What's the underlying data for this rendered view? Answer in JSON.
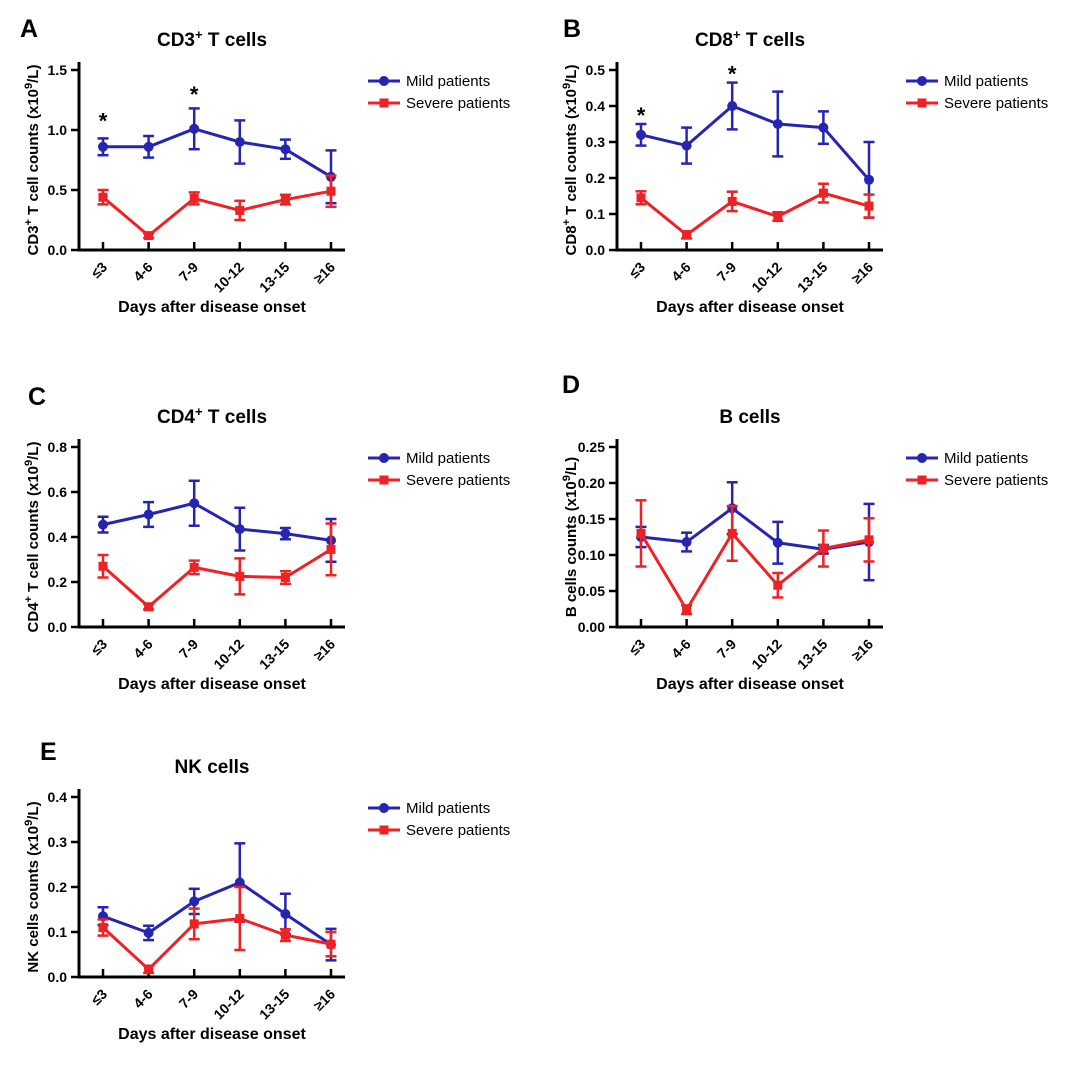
{
  "figure": {
    "description": "Lymphocyte subset counts over days after disease onset, mild vs severe patients",
    "background": "#ffffff"
  },
  "colors": {
    "mild_blue": "#2525B2",
    "severe_red": "#EE2124",
    "axis": "#000000"
  },
  "legend": {
    "items": [
      {
        "label": "Mild patients",
        "series_key": "mild_blue",
        "marker": "circle"
      },
      {
        "label": "Severe patients",
        "series_key": "severe_red",
        "marker": "square"
      }
    ]
  },
  "x_axis": {
    "label": "Days after disease onset",
    "categories": [
      "≤3",
      "4-6",
      "7-9",
      "10-12",
      "13-15",
      "≥16"
    ]
  },
  "chart_data": [
    {
      "panel": "A",
      "type": "line",
      "title": "CD3+ T cells",
      "title_parts": [
        {
          "t": "CD3"
        },
        {
          "t": "+",
          "sup": true
        },
        {
          "t": " T cells"
        }
      ],
      "ylabel": "CD3+ T cell counts (x10^9/L)",
      "ylabel_parts": [
        {
          "t": "CD3"
        },
        {
          "t": "+",
          "sup": true
        },
        {
          "t": " T cell counts (x10"
        },
        {
          "t": "9",
          "sup": true
        },
        {
          "t": "/L)"
        }
      ],
      "xlabel": "Days after disease onset",
      "categories": [
        "≤3",
        "4-6",
        "7-9",
        "10-12",
        "13-15",
        "≥16"
      ],
      "ylim": [
        0,
        1.5
      ],
      "yticks": [
        "0.0",
        "0.5",
        "1.0",
        "1.5"
      ],
      "series": [
        {
          "name": "Mild patients",
          "color_key": "mild_blue",
          "marker": "circle",
          "values": [
            0.86,
            0.86,
            1.01,
            0.9,
            0.84,
            0.61
          ],
          "errors": [
            0.07,
            0.09,
            0.17,
            0.18,
            0.08,
            0.22
          ]
        },
        {
          "name": "Severe patients",
          "color_key": "severe_red",
          "marker": "square",
          "values": [
            0.44,
            0.12,
            0.43,
            0.33,
            0.42,
            0.49
          ],
          "errors": [
            0.06,
            0.02,
            0.05,
            0.08,
            0.04,
            0.13
          ]
        }
      ],
      "significance": [
        {
          "category": "≤3",
          "index": 0,
          "y": 1.08,
          "symbol": "*"
        },
        {
          "category": "7-9",
          "index": 2,
          "y": 1.3,
          "symbol": "*"
        }
      ]
    },
    {
      "panel": "B",
      "type": "line",
      "title": "CD8+ T cells",
      "title_parts": [
        {
          "t": "CD8"
        },
        {
          "t": "+",
          "sup": true
        },
        {
          "t": " T cells"
        }
      ],
      "ylabel": "CD8+ T cell counts (x10^9/L)",
      "ylabel_parts": [
        {
          "t": "CD8"
        },
        {
          "t": "+",
          "sup": true
        },
        {
          "t": " T cell counts (x10"
        },
        {
          "t": "9",
          "sup": true
        },
        {
          "t": "/L)"
        }
      ],
      "xlabel": "Days after disease onset",
      "categories": [
        "≤3",
        "4-6",
        "7-9",
        "10-12",
        "13-15",
        "≥16"
      ],
      "ylim": [
        0,
        0.5
      ],
      "yticks": [
        "0.0",
        "0.1",
        "0.2",
        "0.3",
        "0.4",
        "0.5"
      ],
      "series": [
        {
          "name": "Mild patients",
          "color_key": "mild_blue",
          "marker": "circle",
          "values": [
            0.32,
            0.29,
            0.4,
            0.35,
            0.34,
            0.195
          ],
          "errors": [
            0.03,
            0.05,
            0.065,
            0.09,
            0.045,
            0.105
          ]
        },
        {
          "name": "Severe patients",
          "color_key": "severe_red",
          "marker": "square",
          "values": [
            0.145,
            0.042,
            0.135,
            0.093,
            0.158,
            0.122
          ],
          "errors": [
            0.018,
            0.01,
            0.027,
            0.012,
            0.026,
            0.032
          ]
        }
      ],
      "significance": [
        {
          "category": "≤3",
          "index": 0,
          "y": 0.375,
          "symbol": "*"
        },
        {
          "category": "7-9",
          "index": 2,
          "y": 0.49,
          "symbol": "*"
        }
      ]
    },
    {
      "panel": "C",
      "type": "line",
      "title": "CD4+ T cells",
      "title_parts": [
        {
          "t": "CD4"
        },
        {
          "t": "+",
          "sup": true
        },
        {
          "t": " T cells"
        }
      ],
      "ylabel": "CD4+ T cell counts (x10^9/L)",
      "ylabel_parts": [
        {
          "t": "CD4"
        },
        {
          "t": "+",
          "sup": true
        },
        {
          "t": " T cell counts (x10"
        },
        {
          "t": "9",
          "sup": true
        },
        {
          "t": "/L)"
        }
      ],
      "xlabel": "Days after disease onset",
      "categories": [
        "≤3",
        "4-6",
        "7-9",
        "10-12",
        "13-15",
        "≥16"
      ],
      "ylim": [
        0,
        0.8
      ],
      "yticks": [
        "0.0",
        "0.2",
        "0.4",
        "0.6",
        "0.8"
      ],
      "series": [
        {
          "name": "Mild patients",
          "color_key": "mild_blue",
          "marker": "circle",
          "values": [
            0.455,
            0.5,
            0.55,
            0.435,
            0.415,
            0.385
          ],
          "errors": [
            0.035,
            0.055,
            0.1,
            0.095,
            0.025,
            0.095
          ]
        },
        {
          "name": "Severe patients",
          "color_key": "severe_red",
          "marker": "square",
          "values": [
            0.27,
            0.09,
            0.265,
            0.225,
            0.22,
            0.345
          ],
          "errors": [
            0.05,
            0.012,
            0.03,
            0.08,
            0.028,
            0.115
          ]
        }
      ],
      "significance": []
    },
    {
      "panel": "D",
      "type": "line",
      "title": "B cells",
      "title_parts": [
        {
          "t": "B cells"
        }
      ],
      "ylabel": "B cells counts (x10^9/L)",
      "ylabel_parts": [
        {
          "t": "B cells counts (x10"
        },
        {
          "t": "9",
          "sup": true
        },
        {
          "t": "/L)"
        }
      ],
      "xlabel": "Days after disease onset",
      "categories": [
        "≤3",
        "4-6",
        "7-9",
        "10-12",
        "13-15",
        "≥16"
      ],
      "ylim": [
        0,
        0.25
      ],
      "yticks": [
        "0.00",
        "0.05",
        "0.10",
        "0.15",
        "0.20",
        "0.25"
      ],
      "series": [
        {
          "name": "Mild patients",
          "color_key": "mild_blue",
          "marker": "circle",
          "values": [
            0.125,
            0.118,
            0.165,
            0.117,
            0.108,
            0.118
          ],
          "errors": [
            0.014,
            0.013,
            0.036,
            0.029,
            0.006,
            0.053
          ]
        },
        {
          "name": "Severe patients",
          "color_key": "severe_red",
          "marker": "square",
          "values": [
            0.13,
            0.024,
            0.13,
            0.058,
            0.109,
            0.121
          ],
          "errors": [
            0.046,
            0.006,
            0.038,
            0.017,
            0.025,
            0.03
          ]
        }
      ],
      "significance": []
    },
    {
      "panel": "E",
      "type": "line",
      "title": "NK cells",
      "title_parts": [
        {
          "t": "NK cells"
        }
      ],
      "ylabel": "NK cells counts (x10^9/L)",
      "ylabel_parts": [
        {
          "t": "NK cells counts (x10"
        },
        {
          "t": "9",
          "sup": true
        },
        {
          "t": "/L)"
        }
      ],
      "xlabel": "Days after disease onset",
      "categories": [
        "≤3",
        "4-6",
        "7-9",
        "10-12",
        "13-15",
        "≥16"
      ],
      "ylim": [
        0,
        0.4
      ],
      "yticks": [
        "0.0",
        "0.1",
        "0.2",
        "0.3",
        "0.4"
      ],
      "series": [
        {
          "name": "Mild patients",
          "color_key": "mild_blue",
          "marker": "circle",
          "values": [
            0.135,
            0.098,
            0.168,
            0.21,
            0.14,
            0.072
          ],
          "errors": [
            0.02,
            0.016,
            0.028,
            0.087,
            0.045,
            0.035
          ]
        },
        {
          "name": "Severe patients",
          "color_key": "severe_red",
          "marker": "square",
          "values": [
            0.11,
            0.017,
            0.118,
            0.13,
            0.093,
            0.073
          ],
          "errors": [
            0.018,
            0.008,
            0.034,
            0.07,
            0.013,
            0.027
          ]
        }
      ],
      "significance": []
    }
  ]
}
